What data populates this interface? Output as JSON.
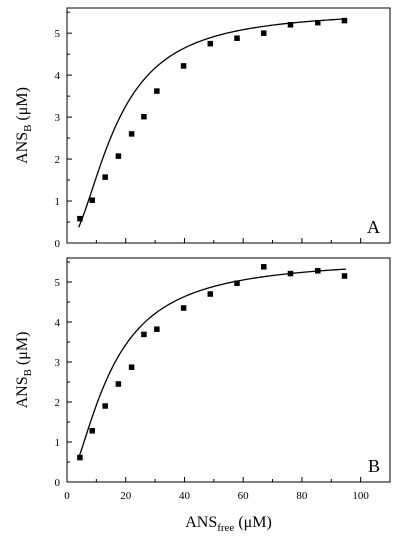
{
  "chart_data": [
    {
      "type": "scatter",
      "panel_label": "A",
      "ylabel": {
        "main": "ANS",
        "sub": "B",
        "unit": " (μM)"
      },
      "xlim": [
        0,
        110
      ],
      "ylim": [
        0,
        5.6
      ],
      "yticks": [
        "0",
        "1",
        "2",
        "3",
        "4",
        "5"
      ],
      "series": [
        {
          "points": [
            [
              4.4,
              0.58
            ],
            [
              8.6,
              1.02
            ],
            [
              13.0,
              1.57
            ],
            [
              17.5,
              2.07
            ],
            [
              22.0,
              2.6
            ],
            [
              26.2,
              3.01
            ],
            [
              30.6,
              3.62
            ],
            [
              39.7,
              4.22
            ],
            [
              48.8,
              4.75
            ],
            [
              57.9,
              4.88
            ],
            [
              67.0,
              5.0
            ],
            [
              76.1,
              5.2
            ],
            [
              85.4,
              5.25
            ],
            [
              94.5,
              5.3
            ]
          ]
        }
      ],
      "fit": {
        "bmax": 5.55,
        "kd": 16.5,
        "n": 1.85,
        "x_range": [
          4,
          95
        ]
      }
    },
    {
      "type": "scatter",
      "panel_label": "B",
      "ylabel": {
        "main": "ANS",
        "sub": "B",
        "unit": " (μM)"
      },
      "xlabel": {
        "main": "ANS",
        "sub": "free",
        "unit": " (μM)"
      },
      "xlim": [
        0,
        110
      ],
      "ylim": [
        0,
        5.6
      ],
      "xticks": [
        "0",
        "20",
        "40",
        "60",
        "80",
        "100"
      ],
      "yticks": [
        "0",
        "1",
        "2",
        "3",
        "4",
        "5"
      ],
      "series": [
        {
          "points": [
            [
              4.4,
              0.61
            ],
            [
              8.6,
              1.28
            ],
            [
              13.0,
              1.9
            ],
            [
              17.5,
              2.45
            ],
            [
              22.0,
              2.87
            ],
            [
              26.2,
              3.69
            ],
            [
              30.6,
              3.82
            ],
            [
              39.7,
              4.35
            ],
            [
              48.8,
              4.7
            ],
            [
              57.9,
              4.97
            ],
            [
              67.0,
              5.38
            ],
            [
              76.1,
              5.21
            ],
            [
              85.4,
              5.28
            ],
            [
              94.5,
              5.15
            ]
          ]
        }
      ],
      "fit": {
        "bmax": 5.6,
        "kd": 15.0,
        "n": 1.6,
        "x_range": [
          4,
          95
        ]
      }
    }
  ]
}
